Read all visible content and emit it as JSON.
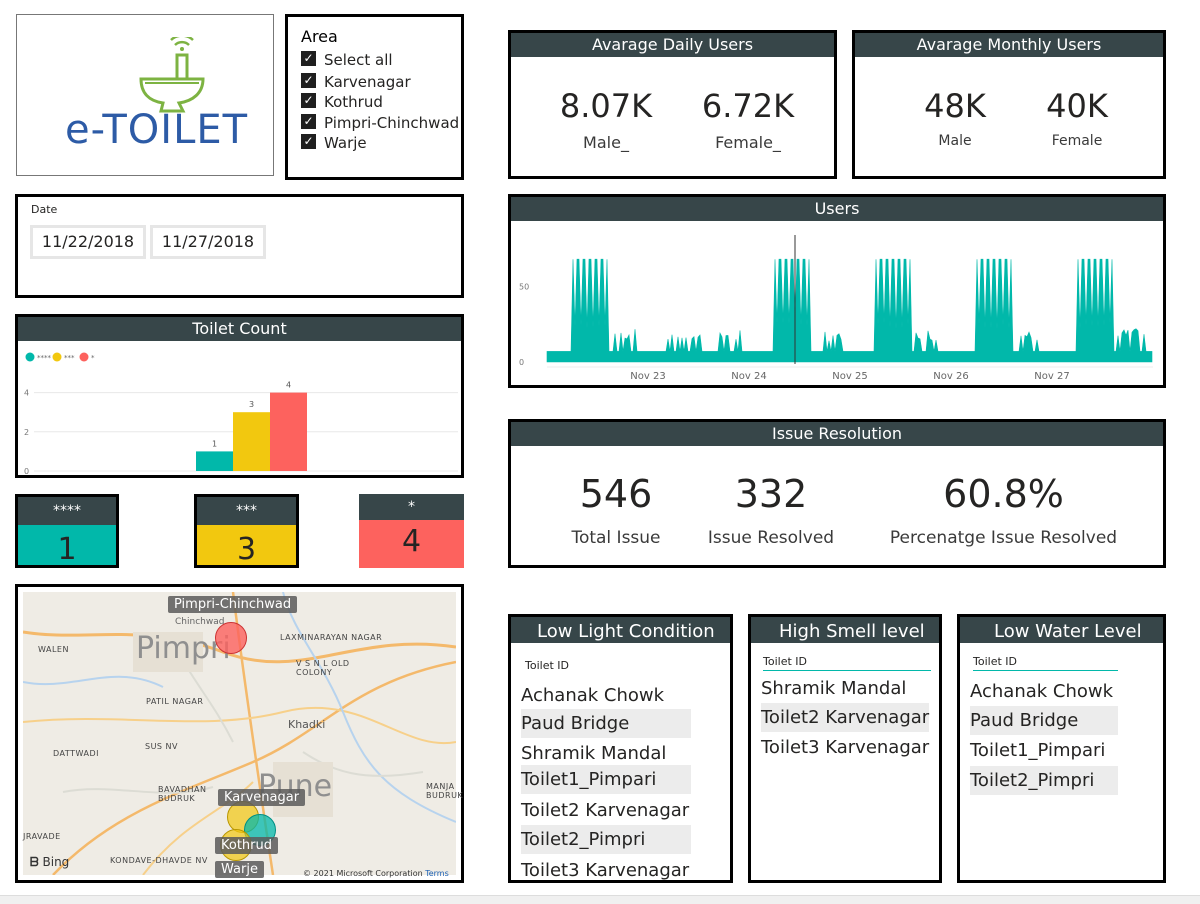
{
  "logo": {
    "text": "e-TOILET"
  },
  "area_slicer": {
    "title": "Area",
    "items": [
      "Select all",
      "Karvenagar",
      "Kothrud",
      "Pimpri-Chinchwad",
      "Warje"
    ]
  },
  "date_slicer": {
    "label": "Date",
    "start": "11/22/2018",
    "end": "11/27/2018"
  },
  "daily_users": {
    "title": "Avarage Daily Users",
    "male_value": "8.07K",
    "male_label": "Male_",
    "female_value": "6.72K",
    "female_label": "Female_"
  },
  "monthly_users": {
    "title": "Avarage Monthly Users",
    "male_value": "48K",
    "male_label": "Male",
    "female_value": "40K",
    "female_label": "Female"
  },
  "users_chart": {
    "title": "Users",
    "chart_data": {
      "type": "area",
      "color": "#01b8aa",
      "x_ticks": [
        "Nov 23",
        "Nov 24",
        "Nov 25",
        "Nov 26",
        "Nov 27"
      ],
      "y_ticks": [
        "0",
        "50"
      ],
      "baseline": 7,
      "peak": 68,
      "busy_days": [
        "Nov 22",
        "Nov 24",
        "Nov 25",
        "Nov 26",
        "Nov 27"
      ]
    }
  },
  "toilet_count": {
    "title": "Toilet Count",
    "chart_data": {
      "type": "bar",
      "categories": [
        "****",
        "***",
        "*"
      ],
      "values": [
        1,
        3,
        4
      ],
      "colors": [
        "#01b8aa",
        "#f2c80f",
        "#fd625e"
      ],
      "y_ticks": [
        "0",
        "2",
        "4"
      ],
      "legend": [
        "****",
        "***",
        "*"
      ]
    }
  },
  "star_cards": [
    {
      "label": "****",
      "value": "1",
      "color": "#01b8aa"
    },
    {
      "label": "***",
      "value": "3",
      "color": "#f2c80f"
    },
    {
      "label": "*",
      "value": "4",
      "color": "#fd625e"
    }
  ],
  "issue_resolution": {
    "title": "Issue Resolution",
    "total_value": "546",
    "total_label": "Total Issue",
    "resolved_value": "332",
    "resolved_label": "Issue Resolved",
    "pct_value": "60.8%",
    "pct_label": "Percenatge Issue Resolved"
  },
  "low_light": {
    "title": "Low Light Condition",
    "column": "Toilet ID",
    "rows": [
      "Achanak Chowk",
      "Paud Bridge",
      "Shramik Mandal",
      "Toilet1_Pimpari",
      "Toilet2 Karvenagar",
      "Toilet2_Pimpri",
      "Toilet3 Karvenagar"
    ]
  },
  "high_smell": {
    "title": "High Smell level",
    "column": "Toilet ID",
    "rows": [
      "Shramik Mandal",
      "Toilet2 Karvenagar",
      "Toilet3 Karvenagar"
    ]
  },
  "low_water": {
    "title": "Low Water Level",
    "column": "Toilet ID",
    "rows": [
      "Achanak Chowk",
      "Paud Bridge",
      "Toilet1_Pimpari",
      "Toilet2_Pimpri"
    ]
  },
  "map": {
    "labels": [
      "Pimpri-Chinchwad",
      "Karvenagar",
      "Kothrud",
      "Warje"
    ],
    "places": [
      "Pimpri",
      "Pune",
      "WALEN",
      "PATIL NAGAR",
      "SUS NV",
      "DATTWADI",
      "BAVADHAN BUDRUK",
      "JRAVADE",
      "KONDAVE-DHAVDE NV",
      "Khadki",
      "V S N L OLD COLONY",
      "LAXMINARAYAN NAGAR",
      "MANJA BUDRUK",
      "Chinchwad"
    ],
    "brand": "Bing",
    "copyright": "© 2021 Microsoft Corporation",
    "terms": "Terms"
  }
}
